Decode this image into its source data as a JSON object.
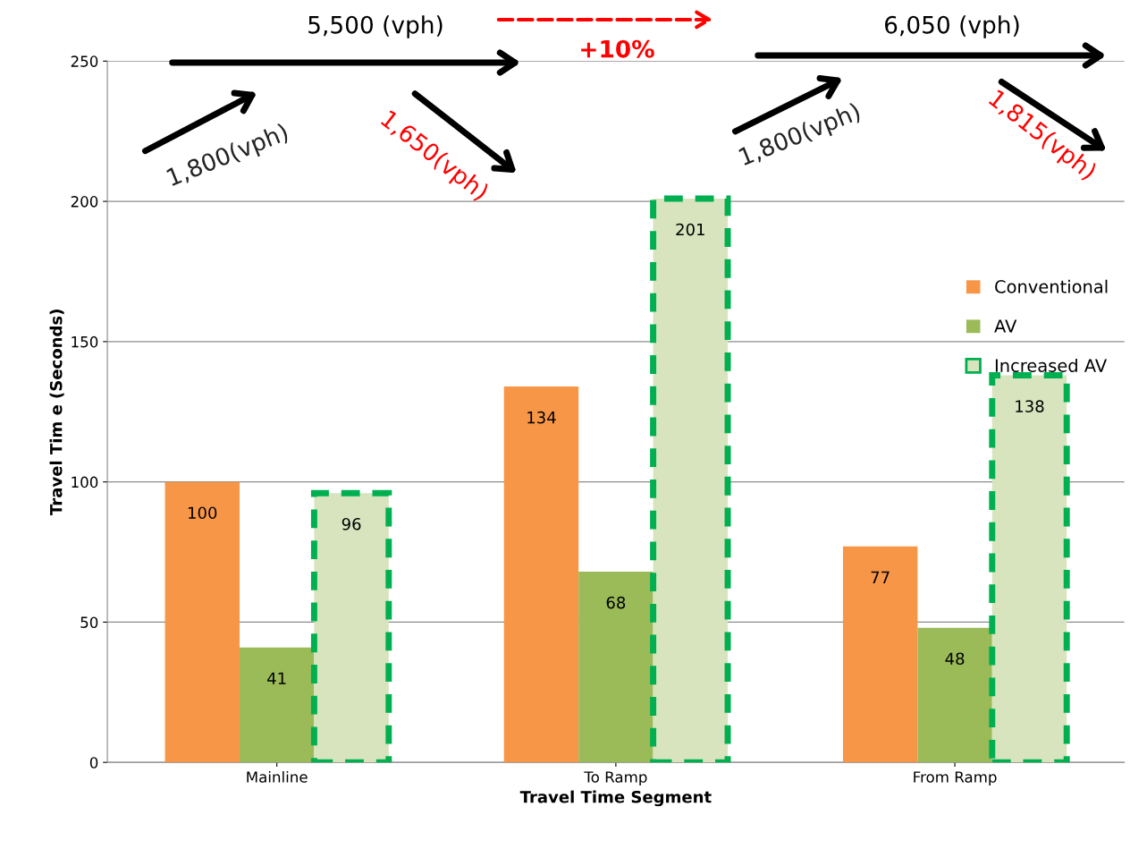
{
  "chart_data": {
    "type": "bar",
    "xlabel": "Travel Time Segment",
    "ylabel": "Travel Tim e (Seconds)",
    "categories": [
      "Mainline",
      "To Ramp",
      "From Ramp"
    ],
    "series": [
      {
        "name": "Conventional",
        "color": "#f79646",
        "values": [
          100,
          134,
          77
        ]
      },
      {
        "name": "AV",
        "color": "#9bbb59",
        "values": [
          41,
          68,
          48
        ]
      },
      {
        "name": "Increased AV",
        "color": "#d7e4bd",
        "values": [
          96,
          201,
          138
        ],
        "line_style": "dashed"
      }
    ],
    "ylim": [
      0,
      250
    ],
    "yticks": [
      0,
      50,
      100,
      150,
      200,
      250
    ],
    "grid": "y",
    "legend": "right",
    "data_labels": true,
    "annotations": [
      "5,500 (vph)",
      "6,050 (vph)",
      "+10%",
      "1,800(vph)",
      "1,650(vph)",
      "1,800(vph)",
      "1,815(vph)"
    ]
  }
}
